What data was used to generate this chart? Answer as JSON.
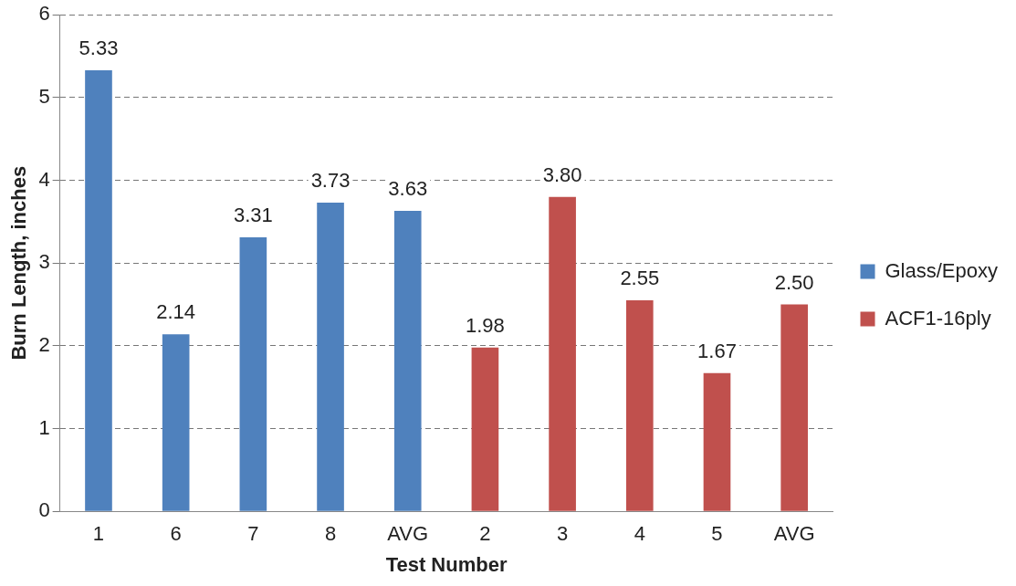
{
  "chart_data": {
    "type": "bar",
    "xlabel": "Test Number",
    "ylabel": "Burn Length, inches",
    "categories": [
      "1",
      "6",
      "7",
      "8",
      "AVG",
      "2",
      "3",
      "4",
      "5",
      "AVG"
    ],
    "series": [
      {
        "name": "Glass/Epoxy",
        "color": "#4f81bd",
        "values": [
          5.33,
          2.14,
          3.31,
          3.73,
          3.63,
          null,
          null,
          null,
          null,
          null
        ],
        "value_labels": [
          "5.33",
          "2.14",
          "3.31",
          "3.73",
          "3.63",
          null,
          null,
          null,
          null,
          null
        ]
      },
      {
        "name": "ACF1-16ply",
        "color": "#c0504d",
        "values": [
          null,
          null,
          null,
          null,
          null,
          1.98,
          3.8,
          2.55,
          1.67,
          2.5
        ],
        "value_labels": [
          null,
          null,
          null,
          null,
          null,
          "1.98",
          "3.80",
          "2.55",
          "1.67",
          "2.50"
        ]
      }
    ],
    "ylim": [
      0,
      6
    ],
    "yticks": [
      0,
      1,
      2,
      3,
      4,
      5,
      6
    ],
    "grid": "y",
    "legend": "right"
  }
}
